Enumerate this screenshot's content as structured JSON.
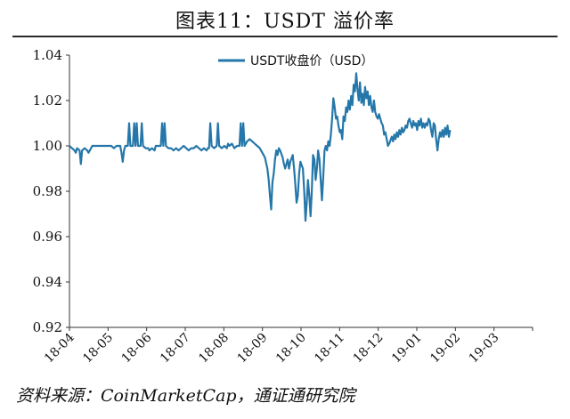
{
  "title": "图表11：USDT 溢价率",
  "source": "资料来源：CoinMarketCap，通证通研究院",
  "colors": {
    "line": "#2577a9",
    "axis": "#333333",
    "text": "#111111"
  },
  "chart_data": {
    "type": "line",
    "legend": "top-center",
    "grid": false,
    "x_tick_labels": [
      "18-04",
      "18-05",
      "18-06",
      "18-07",
      "18-08",
      "18-09",
      "18-10",
      "18-11",
      "18-12",
      "19-01",
      "19-02",
      "19-03"
    ],
    "xlim": [
      "2018-04",
      "2019-04"
    ],
    "ylim": [
      0.92,
      1.04
    ],
    "y_ticks": [
      "0.92",
      "0.94",
      "0.96",
      "0.98",
      "1.00",
      "1.02",
      "1.04"
    ],
    "series": [
      {
        "name": "USDT收盘价（USD）",
        "points": [
          [
            0,
            1.0
          ],
          [
            2,
            0.999
          ],
          [
            4,
            0.998
          ],
          [
            5,
            0.997
          ],
          [
            6,
            0.999
          ],
          [
            8,
            0.998
          ],
          [
            9,
            0.992
          ],
          [
            10,
            0.998
          ],
          [
            12,
            0.999
          ],
          [
            14,
            0.998
          ],
          [
            15,
            0.997
          ],
          [
            17,
            0.999
          ],
          [
            18,
            1.0
          ],
          [
            22,
            1.0
          ],
          [
            25,
            1.0
          ],
          [
            28,
            1.0
          ],
          [
            31,
            1.0
          ],
          [
            33,
            1.0
          ],
          [
            35,
            0.999
          ],
          [
            37,
            1.0
          ],
          [
            40,
            1.0
          ],
          [
            41,
            0.997
          ],
          [
            42,
            0.993
          ],
          [
            43,
            0.998
          ],
          [
            44,
            1.0
          ],
          [
            46,
            1.0
          ],
          [
            47,
            1.01
          ],
          [
            48,
            1.0
          ],
          [
            50,
            1.0
          ],
          [
            51,
            1.01
          ],
          [
            52,
            1.0
          ],
          [
            53,
            1.01
          ],
          [
            54,
            1.0
          ],
          [
            56,
            1.0
          ],
          [
            57,
            1.01
          ],
          [
            58,
            1.0
          ],
          [
            60,
            0.999
          ],
          [
            62,
            0.999
          ],
          [
            63,
            0.998
          ],
          [
            65,
            0.999
          ],
          [
            67,
            0.998
          ],
          [
            68,
            1.0
          ],
          [
            70,
            1.0
          ],
          [
            72,
            1.0
          ],
          [
            73,
            1.01
          ],
          [
            74,
            1.0
          ],
          [
            75,
            1.01
          ],
          [
            76,
            1.0
          ],
          [
            78,
            0.999
          ],
          [
            80,
            0.999
          ],
          [
            82,
            0.998
          ],
          [
            84,
            0.999
          ],
          [
            86,
            0.998
          ],
          [
            88,
            0.999
          ],
          [
            90,
            1.0
          ],
          [
            92,
            0.999
          ],
          [
            94,
            0.998
          ],
          [
            96,
            0.999
          ],
          [
            98,
            0.999
          ],
          [
            100,
            1.0
          ],
          [
            102,
            0.999
          ],
          [
            104,
            0.998
          ],
          [
            106,
            0.999
          ],
          [
            108,
            0.998
          ],
          [
            109,
            0.999
          ],
          [
            110,
            0.999
          ],
          [
            111,
            1.01
          ],
          [
            112,
            1.0
          ],
          [
            114,
            0.999
          ],
          [
            116,
            1.0
          ],
          [
            117,
            1.01
          ],
          [
            118,
            1.0
          ],
          [
            120,
            0.999
          ],
          [
            122,
            1.0
          ],
          [
            124,
            0.999
          ],
          [
            125,
            1.001
          ],
          [
            126,
            1.0
          ],
          [
            128,
            1.001
          ],
          [
            130,
            0.999
          ],
          [
            132,
            1.0
          ],
          [
            134,
            1.0
          ],
          [
            135,
            1.01
          ],
          [
            136,
            1.0
          ],
          [
            137,
            1.01
          ],
          [
            138,
            1.0
          ],
          [
            140,
            1.002
          ],
          [
            142,
            1.003
          ],
          [
            144,
            1.002
          ],
          [
            146,
            1.001
          ],
          [
            148,
            1.0
          ],
          [
            150,
            0.999
          ],
          [
            152,
            0.997
          ],
          [
            154,
            0.995
          ],
          [
            156,
            0.99
          ],
          [
            157,
            0.985
          ],
          [
            158,
            0.978
          ],
          [
            159,
            0.972
          ],
          [
            160,
            0.984
          ],
          [
            161,
            0.988
          ],
          [
            162,
            0.994
          ],
          [
            163,
            0.998
          ],
          [
            164,
            0.996
          ],
          [
            165,
            0.999
          ],
          [
            166,
            0.998
          ],
          [
            168,
            0.995
          ],
          [
            169,
            0.992
          ],
          [
            170,
            0.99
          ],
          [
            172,
            0.994
          ],
          [
            173,
            0.99
          ],
          [
            174,
            0.993
          ],
          [
            176,
            0.996
          ],
          [
            177,
            0.99
          ],
          [
            178,
            0.983
          ],
          [
            179,
            0.975
          ],
          [
            180,
            0.978
          ],
          [
            181,
            0.988
          ],
          [
            182,
            0.993
          ],
          [
            184,
            0.99
          ],
          [
            185,
            0.98
          ],
          [
            186,
            0.967
          ],
          [
            187,
            0.975
          ],
          [
            188,
            0.985
          ],
          [
            189,
            0.978
          ],
          [
            190,
            0.969
          ],
          [
            191,
            0.98
          ],
          [
            192,
            0.996
          ],
          [
            193,
            0.994
          ],
          [
            194,
            0.985
          ],
          [
            195,
            0.99
          ],
          [
            196,
            0.998
          ],
          [
            197,
            0.994
          ],
          [
            198,
            0.985
          ],
          [
            199,
            0.976
          ],
          [
            200,
            0.986
          ],
          [
            201,
            0.998
          ],
          [
            202,
            1.0
          ],
          [
            203,
            0.998
          ],
          [
            204,
            1.002
          ],
          [
            205,
            1.0
          ],
          [
            206,
            1.005
          ],
          [
            207,
            1.012
          ],
          [
            208,
            1.021
          ],
          [
            209,
            1.017
          ],
          [
            210,
            1.012
          ],
          [
            211,
            1.013
          ],
          [
            212,
            1.009
          ],
          [
            213,
            1.006
          ],
          [
            214,
            1.007
          ],
          [
            215,
            1.003
          ],
          [
            216,
            1.013
          ],
          [
            217,
            1.011
          ],
          [
            218,
            1.017
          ],
          [
            219,
            1.015
          ],
          [
            220,
            1.02
          ],
          [
            221,
            1.016
          ],
          [
            222,
            1.022
          ],
          [
            223,
            1.018
          ],
          [
            224,
            1.027
          ],
          [
            225,
            1.024
          ],
          [
            226,
            1.032
          ],
          [
            227,
            1.025
          ],
          [
            228,
            1.02
          ],
          [
            229,
            1.028
          ],
          [
            230,
            1.019
          ],
          [
            231,
            1.023
          ],
          [
            232,
            1.018
          ],
          [
            233,
            1.026
          ],
          [
            234,
            1.021
          ],
          [
            235,
            1.024
          ],
          [
            236,
            1.018
          ],
          [
            237,
            1.022
          ],
          [
            238,
            1.017
          ],
          [
            239,
            1.015
          ],
          [
            240,
            1.02
          ],
          [
            241,
            1.015
          ],
          [
            242,
            1.013
          ],
          [
            243,
            1.012
          ],
          [
            244,
            1.014
          ],
          [
            245,
            1.012
          ],
          [
            246,
            1.01
          ],
          [
            247,
            1.009
          ],
          [
            248,
            1.005
          ],
          [
            249,
            1.006
          ],
          [
            250,
            1.003
          ],
          [
            251,
            1.0
          ],
          [
            252,
            1.001
          ],
          [
            254,
            1.004
          ],
          [
            255,
            1.002
          ],
          [
            256,
            1.005
          ],
          [
            257,
            1.003
          ],
          [
            258,
            1.006
          ],
          [
            259,
            1.004
          ],
          [
            260,
            1.007
          ],
          [
            261,
            1.005
          ],
          [
            262,
            1.008
          ],
          [
            263,
            1.006
          ],
          [
            264,
            1.007
          ],
          [
            265,
            1.009
          ],
          [
            266,
            1.008
          ],
          [
            267,
            1.011
          ],
          [
            268,
            1.012
          ],
          [
            269,
            1.01
          ],
          [
            270,
            1.008
          ],
          [
            271,
            1.011
          ],
          [
            272,
            1.009
          ],
          [
            273,
            1.01
          ],
          [
            274,
            1.007
          ],
          [
            275,
            1.011
          ],
          [
            276,
            1.009
          ],
          [
            277,
            1.012
          ],
          [
            278,
            1.008
          ],
          [
            279,
            1.01
          ],
          [
            280,
            1.008
          ],
          [
            281,
            1.01
          ],
          [
            282,
            1.009
          ],
          [
            283,
            1.012
          ],
          [
            284,
            1.011
          ],
          [
            285,
            1.007
          ],
          [
            286,
            1.004
          ],
          [
            287,
            1.01
          ],
          [
            288,
            1.009
          ],
          [
            289,
            1.003
          ],
          [
            290,
            0.998
          ],
          [
            291,
            1.003
          ],
          [
            292,
            1.006
          ],
          [
            293,
            1.004
          ],
          [
            294,
            1.007
          ],
          [
            295,
            1.004
          ],
          [
            296,
            1.008
          ],
          [
            297,
            1.005
          ],
          [
            298,
            1.009
          ],
          [
            299,
            1.004
          ],
          [
            300,
            1.007
          ]
        ]
      }
    ]
  }
}
